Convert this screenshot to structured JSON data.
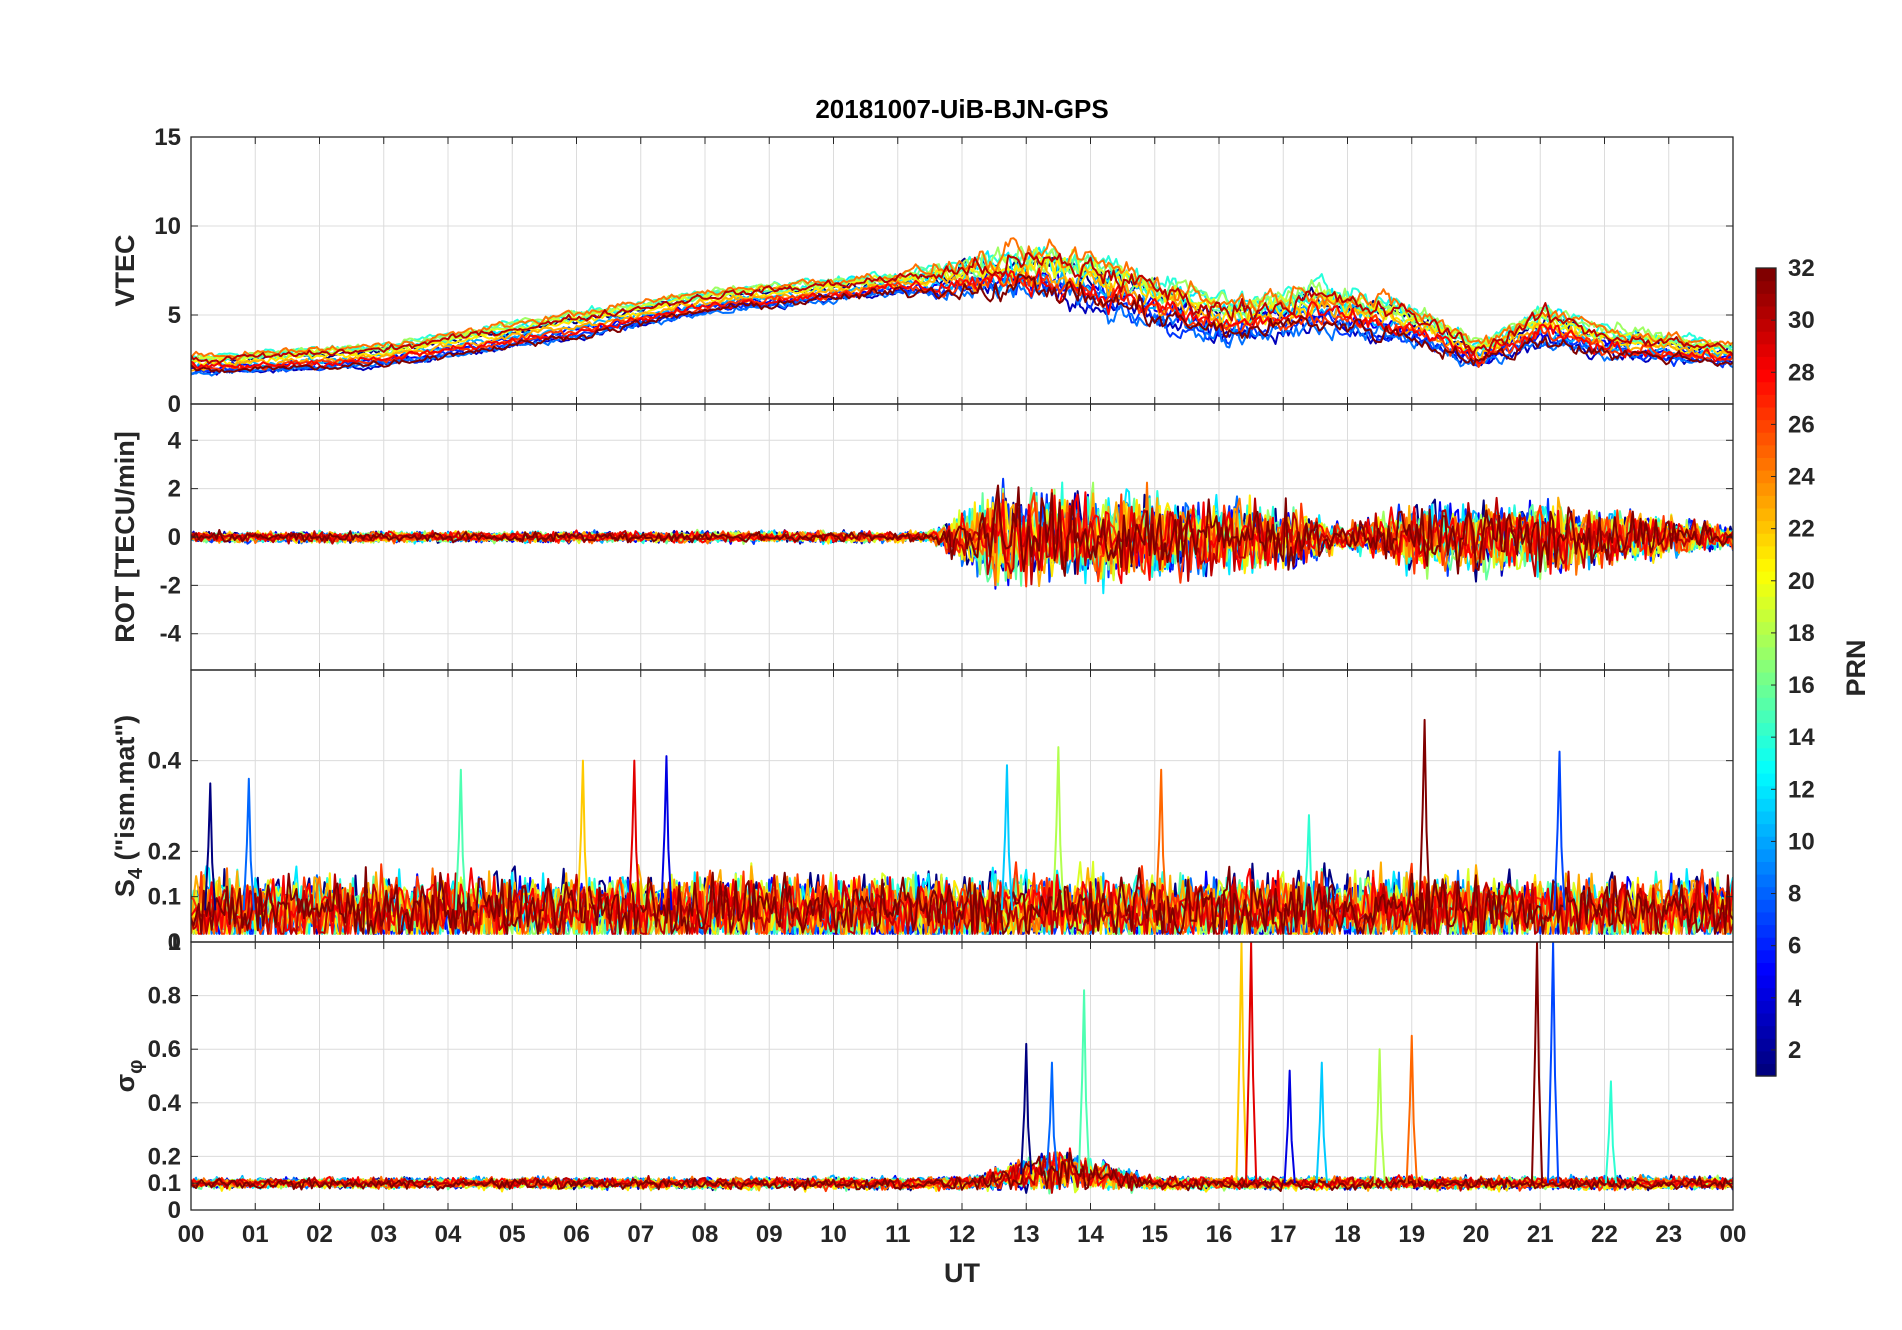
{
  "chart_data": {
    "type": "line",
    "title": "20181007-UiB-BJN-GPS",
    "xlabel": "UT",
    "x_ticks": [
      "00",
      "01",
      "02",
      "03",
      "04",
      "05",
      "06",
      "07",
      "08",
      "09",
      "10",
      "11",
      "12",
      "13",
      "14",
      "15",
      "16",
      "17",
      "18",
      "19",
      "20",
      "21",
      "22",
      "23",
      "00"
    ],
    "xlim_hours": [
      0,
      24
    ],
    "grid": true,
    "colorbar": {
      "label": "PRN",
      "range": [
        1,
        32
      ],
      "ticks": [
        "2",
        "4",
        "6",
        "8",
        "10",
        "12",
        "14",
        "16",
        "18",
        "20",
        "22",
        "24",
        "26",
        "28",
        "30",
        "32"
      ],
      "colormap": "jet",
      "placement": "right"
    },
    "panels": [
      {
        "id": "vtec",
        "ylabel": "VTEC",
        "ylim": [
          0,
          15
        ],
        "y_ticks": [
          0,
          5,
          10,
          15
        ],
        "y_tick_labels": [
          "0",
          "5",
          "10",
          "15"
        ],
        "envelope": [
          {
            "t": 0,
            "base": 2.2,
            "spread": 1.0,
            "noise": 0.3
          },
          {
            "t": 3,
            "base": 2.8,
            "spread": 1.2,
            "noise": 0.3
          },
          {
            "t": 6,
            "base": 4.5,
            "spread": 1.5,
            "noise": 0.3
          },
          {
            "t": 8,
            "base": 5.8,
            "spread": 1.2,
            "noise": 0.3
          },
          {
            "t": 11,
            "base": 6.8,
            "spread": 1.2,
            "noise": 0.4
          },
          {
            "t": 13,
            "base": 7.5,
            "spread": 2.0,
            "noise": 1.2
          },
          {
            "t": 14,
            "base": 7.0,
            "spread": 2.5,
            "noise": 1.2
          },
          {
            "t": 16,
            "base": 4.8,
            "spread": 2.0,
            "noise": 0.9
          },
          {
            "t": 17.5,
            "base": 5.5,
            "spread": 2.0,
            "noise": 0.9
          },
          {
            "t": 19,
            "base": 4.5,
            "spread": 1.8,
            "noise": 0.8
          },
          {
            "t": 20,
            "base": 2.8,
            "spread": 1.2,
            "noise": 0.6
          },
          {
            "t": 21,
            "base": 4.5,
            "spread": 2.0,
            "noise": 0.8
          },
          {
            "t": 22,
            "base": 3.5,
            "spread": 1.5,
            "noise": 0.6
          },
          {
            "t": 24,
            "base": 2.8,
            "spread": 1.0,
            "noise": 0.4
          }
        ]
      },
      {
        "id": "rot",
        "ylabel": "ROT [TECU/min]",
        "ylim": [
          -5.5,
          5.5
        ],
        "y_ticks": [
          -4,
          -2,
          0,
          2,
          4
        ],
        "y_tick_labels": [
          "-4",
          "-2",
          "0",
          "2",
          "4"
        ],
        "envelope": [
          {
            "t": 0,
            "base": 0,
            "spread": 0,
            "noise": 0.15
          },
          {
            "t": 11.5,
            "base": 0,
            "spread": 0,
            "noise": 0.15
          },
          {
            "t": 12.5,
            "base": 0,
            "spread": 0,
            "noise": 1.3
          },
          {
            "t": 15,
            "base": 0,
            "spread": 0,
            "noise": 1.1
          },
          {
            "t": 17,
            "base": 0,
            "spread": 0,
            "noise": 0.9
          },
          {
            "t": 18,
            "base": 0,
            "spread": 0,
            "noise": 0.3
          },
          {
            "t": 19,
            "base": 0,
            "spread": 0,
            "noise": 0.9
          },
          {
            "t": 21,
            "base": 0,
            "spread": 0,
            "noise": 1.0
          },
          {
            "t": 24,
            "base": 0,
            "spread": 0,
            "noise": 0.3
          }
        ]
      },
      {
        "id": "s4",
        "ylabel_main": "S",
        "ylabel_sub": "4",
        "ylabel_suffix": " (\"ism.mat\")",
        "ylim": [
          0,
          0.6
        ],
        "y_ticks": [
          0,
          0.1,
          0.2,
          0.4
        ],
        "y_tick_labels": [
          "0",
          "0.1",
          "0.2",
          "0.4"
        ],
        "envelope": [
          {
            "t": 0,
            "base": 0.07,
            "spread": 0.03,
            "noise": 0.05
          },
          {
            "t": 24,
            "base": 0.07,
            "spread": 0.03,
            "noise": 0.05
          }
        ],
        "spikes": [
          {
            "t": 0.3,
            "v": 0.35
          },
          {
            "t": 0.9,
            "v": 0.36
          },
          {
            "t": 4.2,
            "v": 0.38
          },
          {
            "t": 6.1,
            "v": 0.4
          },
          {
            "t": 6.9,
            "v": 0.4
          },
          {
            "t": 7.4,
            "v": 0.41
          },
          {
            "t": 12.7,
            "v": 0.39
          },
          {
            "t": 13.5,
            "v": 0.43
          },
          {
            "t": 15.1,
            "v": 0.38
          },
          {
            "t": 19.2,
            "v": 0.49
          },
          {
            "t": 21.3,
            "v": 0.42
          },
          {
            "t": 17.4,
            "v": 0.28
          }
        ]
      },
      {
        "id": "sigma",
        "ylabel_main": "σ",
        "ylabel_sub": "φ",
        "ylim": [
          0,
          1.0
        ],
        "y_ticks": [
          0,
          0.1,
          0.2,
          0.4,
          0.6,
          0.8,
          1.0
        ],
        "y_tick_labels": [
          "0",
          "0.1",
          "0.2",
          "0.4",
          "0.6",
          "0.8",
          "1"
        ],
        "envelope": [
          {
            "t": 0,
            "base": 0.1,
            "spread": 0.01,
            "noise": 0.012
          },
          {
            "t": 12,
            "base": 0.1,
            "spread": 0.01,
            "noise": 0.015
          },
          {
            "t": 13.5,
            "base": 0.15,
            "spread": 0.02,
            "noise": 0.05
          },
          {
            "t": 15,
            "base": 0.1,
            "spread": 0.01,
            "noise": 0.015
          },
          {
            "t": 24,
            "base": 0.1,
            "spread": 0.01,
            "noise": 0.015
          }
        ],
        "spikes": [
          {
            "t": 13.0,
            "v": 0.62
          },
          {
            "t": 13.4,
            "v": 0.55
          },
          {
            "t": 13.9,
            "v": 0.82
          },
          {
            "t": 16.35,
            "v": 1.0
          },
          {
            "t": 16.5,
            "v": 1.0
          },
          {
            "t": 17.1,
            "v": 0.52
          },
          {
            "t": 17.6,
            "v": 0.55
          },
          {
            "t": 18.5,
            "v": 0.6
          },
          {
            "t": 19.0,
            "v": 0.65
          },
          {
            "t": 20.95,
            "v": 1.0
          },
          {
            "t": 21.2,
            "v": 1.0
          },
          {
            "t": 22.1,
            "v": 0.48
          }
        ]
      }
    ]
  }
}
